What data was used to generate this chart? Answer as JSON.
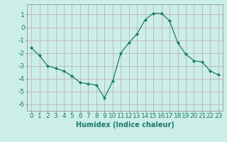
{
  "x": [
    0,
    1,
    2,
    3,
    4,
    5,
    6,
    7,
    8,
    9,
    10,
    11,
    12,
    13,
    14,
    15,
    16,
    17,
    18,
    19,
    20,
    21,
    22,
    23
  ],
  "y": [
    -1.6,
    -2.2,
    -3.0,
    -3.2,
    -3.4,
    -3.8,
    -4.3,
    -4.4,
    -4.5,
    -5.5,
    -4.2,
    -2.0,
    -1.2,
    -0.5,
    0.6,
    1.1,
    1.1,
    0.5,
    -1.2,
    -2.1,
    -2.6,
    -2.7,
    -3.4,
    -3.7
  ],
  "line_color": "#1a7a6a",
  "marker": "D",
  "marker_size": 2.0,
  "linewidth": 0.9,
  "xlabel": "Humidex (Indice chaleur)",
  "xlabel_fontsize": 7,
  "ylim": [
    -6.5,
    1.8
  ],
  "xlim": [
    -0.5,
    23.5
  ],
  "yticks": [
    -6,
    -5,
    -4,
    -3,
    -2,
    -1,
    0,
    1
  ],
  "xticks": [
    0,
    1,
    2,
    3,
    4,
    5,
    6,
    7,
    8,
    9,
    10,
    11,
    12,
    13,
    14,
    15,
    16,
    17,
    18,
    19,
    20,
    21,
    22,
    23
  ],
  "background_color": "#cceee8",
  "grid_color": "#b8a8a8",
  "tick_label_fontsize": 6.5
}
